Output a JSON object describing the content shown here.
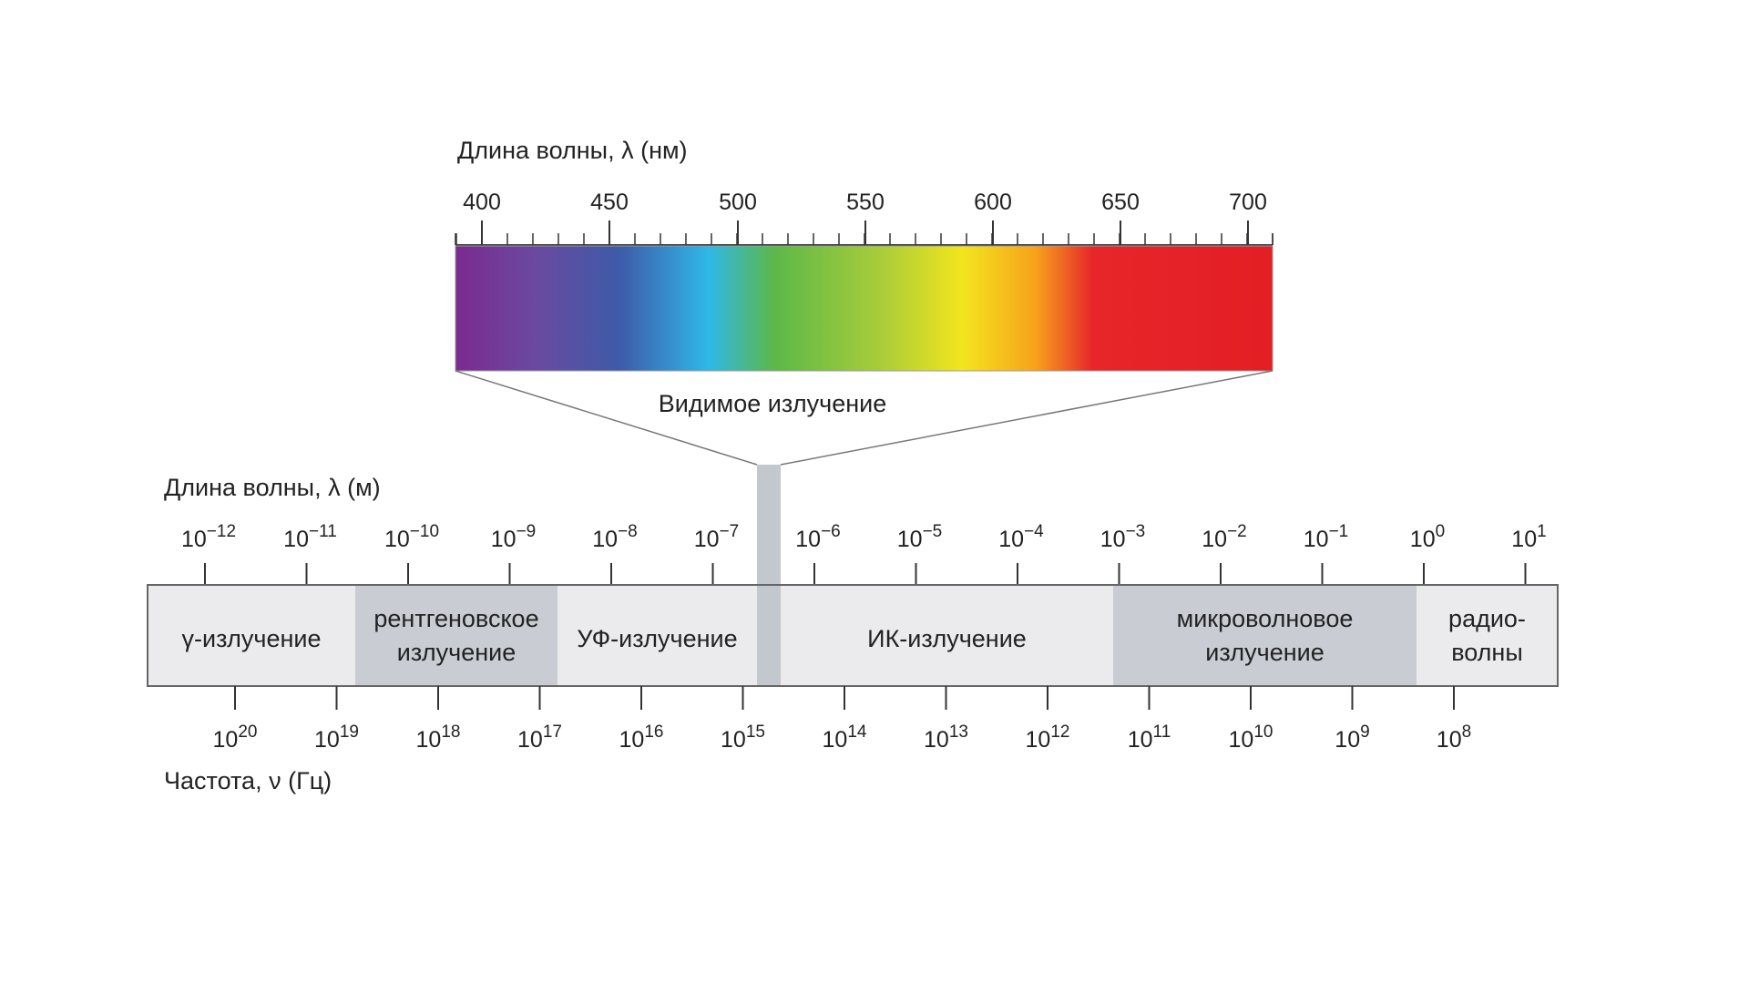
{
  "visible": {
    "title": "Длина волны, λ (нм)",
    "label": "Видимое излучение",
    "ticks": [
      "400",
      "450",
      "500",
      "550",
      "600",
      "650",
      "700"
    ],
    "colors": [
      "#7b2a8e",
      "#6a4aa0",
      "#3e5aa8",
      "#2fb8e8",
      "#5cb848",
      "#a8cc3a",
      "#f2e51e",
      "#f7a21b",
      "#e7262a",
      "#e31e24"
    ]
  },
  "wavelength_axis": {
    "title": "Длина волны, λ (м)",
    "ticks": [
      {
        "base": "10",
        "exp": "−12"
      },
      {
        "base": "10",
        "exp": "−11"
      },
      {
        "base": "10",
        "exp": "−10"
      },
      {
        "base": "10",
        "exp": "−9"
      },
      {
        "base": "10",
        "exp": "−8"
      },
      {
        "base": "10",
        "exp": "−7"
      },
      {
        "base": "10",
        "exp": "−6"
      },
      {
        "base": "10",
        "exp": "−5"
      },
      {
        "base": "10",
        "exp": "−4"
      },
      {
        "base": "10",
        "exp": "−3"
      },
      {
        "base": "10",
        "exp": "−2"
      },
      {
        "base": "10",
        "exp": "−1"
      },
      {
        "base": "10",
        "exp": "0"
      },
      {
        "base": "10",
        "exp": "1"
      }
    ]
  },
  "frequency_axis": {
    "title": "Частота, ν (Гц)",
    "ticks": [
      {
        "base": "10",
        "exp": "20"
      },
      {
        "base": "10",
        "exp": "19"
      },
      {
        "base": "10",
        "exp": "18"
      },
      {
        "base": "10",
        "exp": "17"
      },
      {
        "base": "10",
        "exp": "16"
      },
      {
        "base": "10",
        "exp": "15"
      },
      {
        "base": "10",
        "exp": "14"
      },
      {
        "base": "10",
        "exp": "13"
      },
      {
        "base": "10",
        "exp": "12"
      },
      {
        "base": "10",
        "exp": "11"
      },
      {
        "base": "10",
        "exp": "10"
      },
      {
        "base": "10",
        "exp": "9"
      },
      {
        "base": "10",
        "exp": "8"
      }
    ]
  },
  "bands": [
    {
      "name": "gamma",
      "lines": [
        "γ-излучение"
      ],
      "fill": "#ebebed"
    },
    {
      "name": "xray",
      "lines": [
        "рентгеновское",
        "излучение"
      ],
      "fill": "#c9ccd3"
    },
    {
      "name": "uv",
      "lines": [
        "УФ-излучение"
      ],
      "fill": "#ebebed"
    },
    {
      "name": "ir",
      "lines": [
        "ИК-излучение"
      ],
      "fill": "#ebebed"
    },
    {
      "name": "microwave",
      "lines": [
        "микроволновое",
        "излучение"
      ],
      "fill": "#c9ccd3"
    },
    {
      "name": "radio",
      "lines": [
        "радио-",
        "волны"
      ],
      "fill": "#ebebed"
    }
  ],
  "visible_band_fill": "#c3c7ce"
}
